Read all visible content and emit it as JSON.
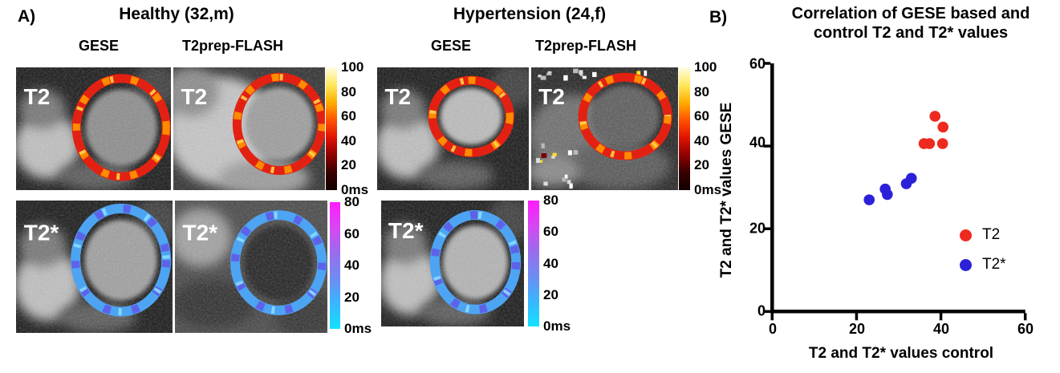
{
  "panel_a": {
    "label": "A)",
    "groups": [
      {
        "title": "Healthy (32,m)",
        "columns": [
          "GESE",
          "T2prep-FLASH"
        ]
      },
      {
        "title": "Hypertension (24,f)",
        "columns": [
          "GESE",
          "T2prep-FLASH"
        ]
      }
    ],
    "map_labels": {
      "t2": "T2",
      "t2star": "T2*"
    },
    "colorbars": {
      "t2": {
        "ticks": [
          "100",
          "80",
          "60",
          "40",
          "20",
          "0ms"
        ],
        "gradient": [
          "#fffce4",
          "#ffe95c",
          "#ffae00",
          "#ff5200",
          "#e01300",
          "#8e0000",
          "#360000",
          "#140000"
        ]
      },
      "t2star": {
        "ticks": [
          "80",
          "60",
          "40",
          "20",
          "0ms"
        ],
        "gradient": [
          "#ff1cff",
          "#d846f2",
          "#9a6cee",
          "#6f8cf2",
          "#38b6ff",
          "#14e2ff"
        ]
      }
    }
  },
  "panel_b": {
    "label": "B)",
    "title_line1": "Correlation of GESE based and",
    "title_line2": "control T2 and T2* values",
    "xlabel": "T2 and T2* values control",
    "ylabel": "T2 and T2* values GESE",
    "x_ticks": [
      "0",
      "20",
      "40",
      "60"
    ],
    "y_ticks": [
      "60",
      "40",
      "20",
      "0"
    ],
    "legend": [
      {
        "label": "T2",
        "color": "#ee2a1f"
      },
      {
        "label": "T2*",
        "color": "#2c20d9"
      }
    ]
  },
  "chart_data": {
    "type": "scatter",
    "title": "Correlation of GESE based and control T2 and T2* values",
    "xlabel": "T2 and T2* values control",
    "ylabel": "T2 and T2* values GESE",
    "xlim": [
      0,
      60
    ],
    "ylim": [
      0,
      60
    ],
    "x_ticks": [
      0,
      20,
      40,
      60
    ],
    "y_ticks": [
      0,
      20,
      40,
      60
    ],
    "grid": false,
    "legend_position": "inside-lower-right",
    "series": [
      {
        "name": "T2",
        "color": "#ee2a1f",
        "points": [
          [
            38.6,
            47.2
          ],
          [
            40.5,
            44.6
          ],
          [
            36.0,
            40.6
          ],
          [
            37.3,
            40.6
          ],
          [
            40.4,
            40.6
          ]
        ]
      },
      {
        "name": "T2*",
        "color": "#2c20d9",
        "points": [
          [
            23.0,
            27.0
          ],
          [
            26.8,
            29.6
          ],
          [
            27.3,
            28.3
          ],
          [
            31.8,
            30.9
          ],
          [
            33.0,
            32.2
          ]
        ]
      }
    ]
  }
}
